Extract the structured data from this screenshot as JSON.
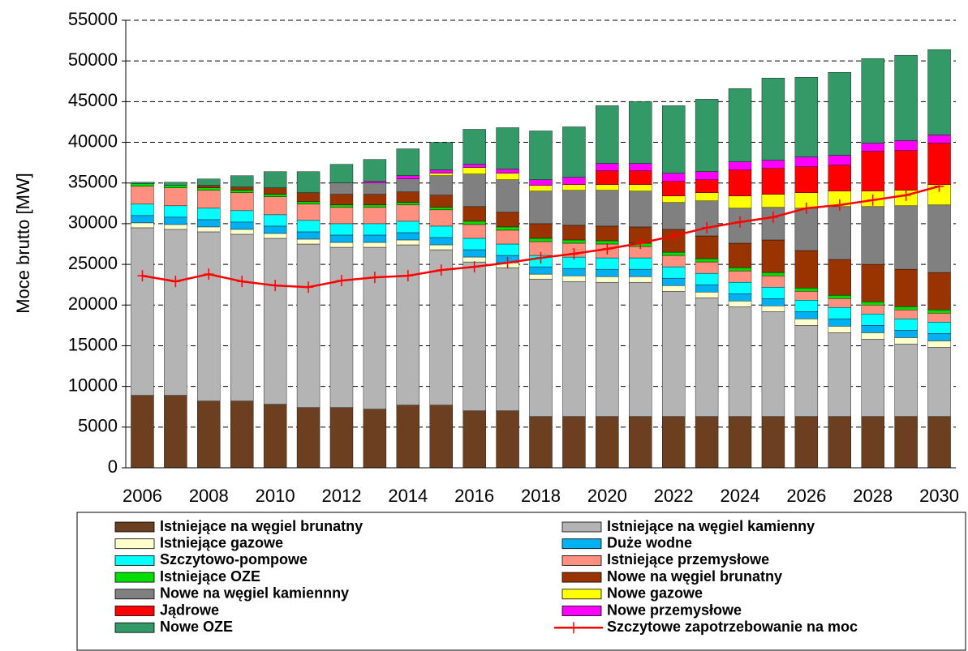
{
  "chart_data": {
    "type": "bar",
    "stacked": true,
    "y_label": "Moce brutto [MW]",
    "categories": [
      "2006",
      null,
      "2008",
      null,
      "2010",
      null,
      "2012",
      null,
      "2014",
      null,
      "2016",
      null,
      "2018",
      null,
      "2020",
      null,
      "2022",
      null,
      "2024",
      null,
      "2026",
      null,
      "2028",
      null,
      "2030"
    ],
    "ylim": [
      0,
      55000
    ],
    "yticks": [
      0,
      5000,
      10000,
      15000,
      20000,
      25000,
      30000,
      35000,
      40000,
      45000,
      50000,
      55000
    ],
    "grid": true,
    "legend": "bottom",
    "series": [
      {
        "name": "Istniejące na węgiel brunatny",
        "color": "#6b3f1f",
        "values": [
          8900,
          8900,
          8200,
          8200,
          7800,
          7400,
          7400,
          7200,
          7700,
          7700,
          7000,
          7000,
          6300,
          6300,
          6300,
          6300,
          6300,
          6300,
          6300,
          6300,
          6300,
          6300,
          6300,
          6300,
          6300
        ]
      },
      {
        "name": "Istniejące na węgiel kamienny",
        "color": "#b4b4b4",
        "values": [
          20600,
          20400,
          20800,
          20500,
          20400,
          20100,
          19700,
          19900,
          19700,
          19100,
          18300,
          17600,
          16900,
          16600,
          16500,
          16500,
          15400,
          14600,
          13500,
          12900,
          11200,
          10300,
          9500,
          8900,
          8500
        ]
      },
      {
        "name": "Istniejące gazowe",
        "color": "#ffffcc",
        "values": [
          600,
          600,
          600,
          600,
          600,
          600,
          600,
          600,
          600,
          600,
          600,
          600,
          600,
          700,
          700,
          700,
          700,
          700,
          700,
          700,
          800,
          800,
          800,
          800,
          800
        ]
      },
      {
        "name": "Duże wodne",
        "color": "#00b0f0",
        "values": [
          900,
          900,
          900,
          900,
          900,
          900,
          900,
          900,
          900,
          900,
          900,
          900,
          900,
          900,
          900,
          900,
          900,
          900,
          900,
          900,
          900,
          900,
          900,
          900,
          900
        ]
      },
      {
        "name": "Szczytowo-pompowe",
        "color": "#00ffff",
        "values": [
          1400,
          1400,
          1400,
          1400,
          1400,
          1400,
          1400,
          1400,
          1400,
          1400,
          1400,
          1400,
          1400,
          1400,
          1400,
          1400,
          1400,
          1400,
          1400,
          1400,
          1400,
          1400,
          1400,
          1400,
          1400
        ]
      },
      {
        "name": "Istniejące przemysłowe",
        "color": "#ff9080",
        "values": [
          2200,
          2200,
          2200,
          2200,
          2200,
          2000,
          2000,
          2000,
          2000,
          2000,
          1700,
          1700,
          1700,
          1700,
          1700,
          1400,
          1400,
          1400,
          1400,
          1400,
          1100,
          1100,
          1100,
          1100,
          1100
        ]
      },
      {
        "name": "Istniejące OZE",
        "color": "#00dd00",
        "values": [
          300,
          300,
          300,
          300,
          300,
          300,
          300,
          300,
          300,
          300,
          400,
          400,
          400,
          400,
          400,
          400,
          400,
          400,
          400,
          400,
          400,
          400,
          400,
          400,
          400
        ]
      },
      {
        "name": "Nowe na węgiel brunatny",
        "color": "#993300",
        "values": [
          0,
          0,
          300,
          400,
          800,
          1100,
          1300,
          1300,
          1300,
          1500,
          1800,
          1800,
          1800,
          1800,
          1800,
          2000,
          2800,
          2800,
          3000,
          4000,
          4600,
          4400,
          4600,
          4600,
          4600
        ]
      },
      {
        "name": "Nowe na węgiel kamiennny",
        "color": "#808080",
        "values": [
          0,
          0,
          0,
          0,
          0,
          0,
          1400,
          1400,
          1600,
          2400,
          4000,
          4000,
          4000,
          4300,
          4400,
          4400,
          3300,
          4300,
          4300,
          4000,
          5200,
          6500,
          7100,
          7800,
          8300
        ]
      },
      {
        "name": "Nowe gazowe",
        "color": "#ffff00",
        "values": [
          0,
          0,
          0,
          0,
          0,
          0,
          0,
          0,
          0,
          300,
          800,
          800,
          700,
          700,
          700,
          800,
          800,
          1000,
          1500,
          1600,
          1900,
          1900,
          1900,
          1900,
          2500
        ]
      },
      {
        "name": "Jądrowe",
        "color": "#ff0000",
        "values": [
          0,
          0,
          0,
          0,
          0,
          0,
          0,
          0,
          0,
          0,
          0,
          0,
          0,
          0,
          1700,
          1700,
          1800,
          1600,
          3200,
          3200,
          3200,
          3200,
          4900,
          4900,
          5100
        ]
      },
      {
        "name": "Nowe przemysłowe",
        "color": "#ff00ff",
        "values": [
          0,
          0,
          0,
          0,
          0,
          0,
          0,
          200,
          400,
          400,
          400,
          500,
          700,
          900,
          900,
          900,
          1000,
          1000,
          1000,
          1000,
          1200,
          1200,
          1000,
          1200,
          1000
        ]
      },
      {
        "name": "Nowe OZE",
        "color": "#339966",
        "values": [
          200,
          400,
          800,
          1400,
          2000,
          2600,
          2300,
          2700,
          3300,
          3400,
          4300,
          5100,
          6000,
          6200,
          7100,
          7600,
          8300,
          8900,
          9000,
          10100,
          9800,
          10200,
          10400,
          10500,
          10500
        ]
      },
      {
        "name": "Szczytowe zapotrzebowanie na moc",
        "color": "#ff0000",
        "type": "line",
        "values": [
          23600,
          22900,
          23800,
          22900,
          22400,
          22200,
          23000,
          23400,
          23600,
          24300,
          24700,
          25200,
          25800,
          26300,
          26900,
          27600,
          28500,
          29500,
          30200,
          30800,
          31900,
          32300,
          32900,
          33500,
          34600
        ]
      }
    ]
  }
}
